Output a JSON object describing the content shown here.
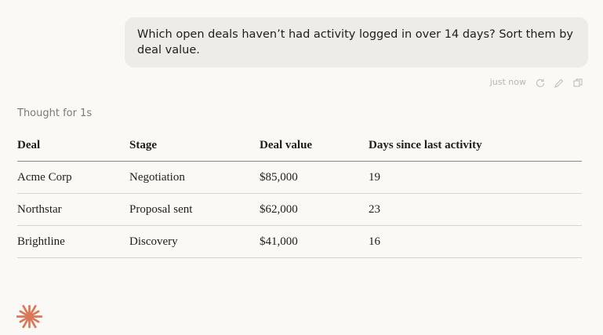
{
  "user_message": {
    "text": "Which open deals haven’t had activity logged in over 14 days? Sort them by deal value.",
    "timestamp": "just now"
  },
  "response": {
    "thought": "Thought for 1s",
    "table": {
      "headers": [
        "Deal",
        "Stage",
        "Deal value",
        "Days since last activity"
      ],
      "rows": [
        [
          "Acme Corp",
          "Negotiation",
          "$85,000",
          "19"
        ],
        [
          "Northstar",
          "Proposal sent",
          "$62,000",
          "23"
        ],
        [
          "Brightline",
          "Discovery",
          "$41,000",
          "16"
        ]
      ]
    }
  }
}
